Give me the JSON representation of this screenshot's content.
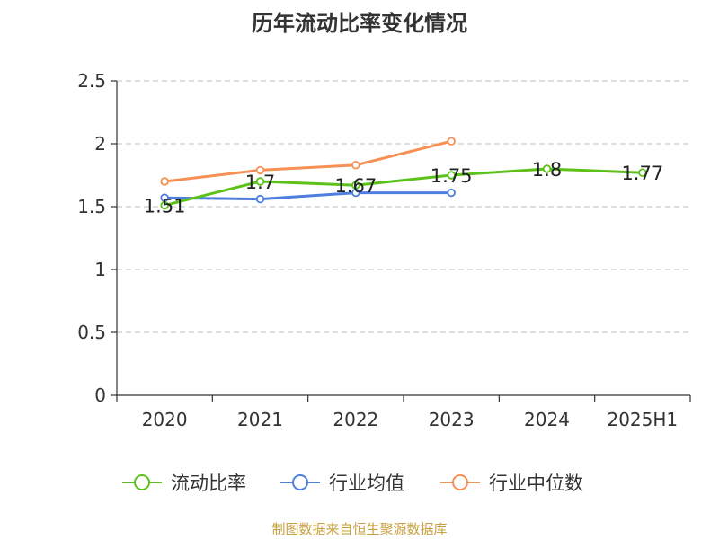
{
  "chart_data": {
    "type": "line",
    "title": "历年流动比率变化情况",
    "categories": [
      "2020",
      "2021",
      "2022",
      "2023",
      "2024",
      "2025H1"
    ],
    "ylim": [
      0,
      2.5
    ],
    "yticks": [
      "0",
      "0.5",
      "1",
      "1.5",
      "2",
      "2.5"
    ],
    "grid": true,
    "legend_position": "bottom",
    "series": [
      {
        "name": "流动比率",
        "color": "#5cc21a",
        "values": [
          1.51,
          1.7,
          1.67,
          1.75,
          1.8,
          1.77
        ],
        "labels": [
          "1.51",
          "1.7",
          "1.67",
          "1.75",
          "1.8",
          "1.77"
        ]
      },
      {
        "name": "行业均值",
        "color": "#4e7fe0",
        "values": [
          1.57,
          1.56,
          1.61,
          1.61,
          null,
          null
        ]
      },
      {
        "name": "行业中位数",
        "color": "#f79055",
        "values": [
          1.7,
          1.79,
          1.83,
          2.02,
          null,
          null
        ]
      }
    ]
  },
  "footer": {
    "source": "制图数据来自恒生聚源数据库"
  }
}
